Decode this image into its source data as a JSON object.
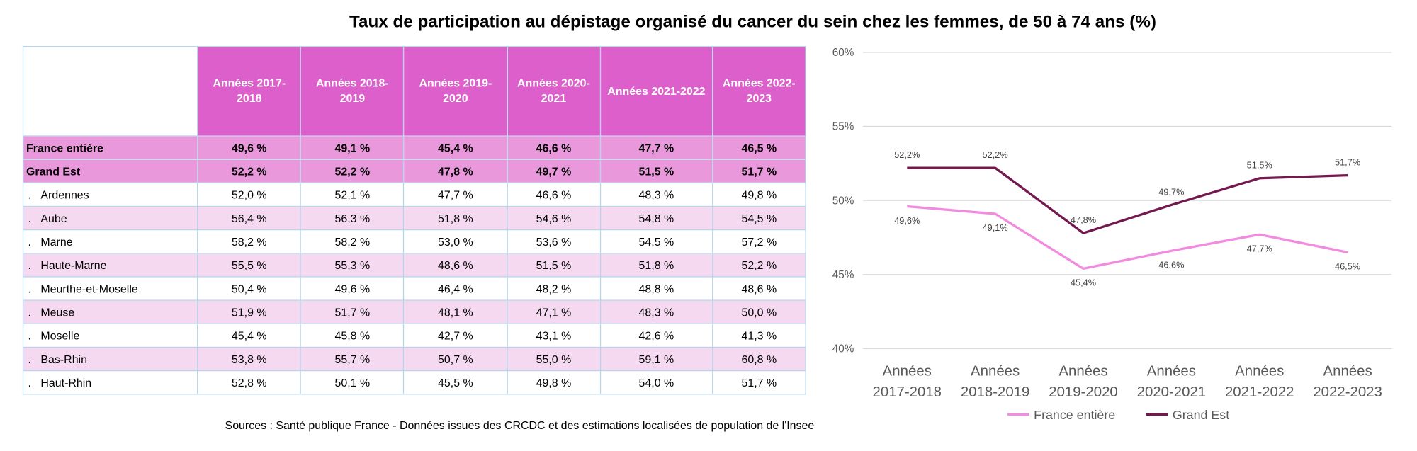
{
  "title": "Taux de participation au dépistage organisé du cancer du sein chez les femmes, de 50 à 74 ans (%)",
  "sources": "Sources : Santé publique France - Données issues des CRCDC et des estimations localisées de population de l'Insee",
  "table": {
    "headers": [
      "Années 2017-2018",
      "Années 2018-2019",
      "Années 2019-2020",
      "Années 2020-2021",
      "Années 2021-2022",
      "Années 2022-2023"
    ],
    "rows": [
      {
        "label": "France entière",
        "marker": "",
        "values": [
          "49,6 %",
          "49,1 %",
          "45,4 %",
          "46,6 %",
          "47,7 %",
          "46,5 %"
        ]
      },
      {
        "label": "Grand Est",
        "marker": "",
        "values": [
          "52,2 %",
          "52,2 %",
          "47,8 %",
          "49,7 %",
          "51,5 %",
          "51,7 %"
        ]
      },
      {
        "label": "Ardennes",
        "marker": ".",
        "values": [
          "52,0 %",
          "52,1 %",
          "47,7 %",
          "46,6 %",
          "48,3 %",
          "49,8 %"
        ]
      },
      {
        "label": "Aube",
        "marker": ".",
        "values": [
          "56,4 %",
          "56,3 %",
          "51,8 %",
          "54,6 %",
          "54,8 %",
          "54,5 %"
        ]
      },
      {
        "label": "Marne",
        "marker": ".",
        "values": [
          "58,2 %",
          "58,2 %",
          "53,0 %",
          "53,6 %",
          "54,5 %",
          "57,2 %"
        ]
      },
      {
        "label": "Haute-Marne",
        "marker": ".",
        "values": [
          "55,5 %",
          "55,3 %",
          "48,6 %",
          "51,5 %",
          "51,8 %",
          "52,2 %"
        ]
      },
      {
        "label": "Meurthe-et-Moselle",
        "marker": ".",
        "values": [
          "50,4 %",
          "49,6 %",
          "46,4 %",
          "48,2 %",
          "48,8 %",
          "48,6 %"
        ]
      },
      {
        "label": "Meuse",
        "marker": ".",
        "values": [
          "51,9 %",
          "51,7 %",
          "48,1 %",
          "47,1 %",
          "48,3 %",
          "50,0 %"
        ]
      },
      {
        "label": "Moselle",
        "marker": ".",
        "values": [
          "45,4 %",
          "45,8 %",
          "42,7 %",
          "43,1 %",
          "42,6 %",
          "41,3 %"
        ]
      },
      {
        "label": "Bas-Rhin",
        "marker": ".",
        "values": [
          "53,8 %",
          "55,7 %",
          "50,7 %",
          "55,0 %",
          "59,1 %",
          "60,8 %"
        ]
      },
      {
        "label": "Haut-Rhin",
        "marker": ".",
        "values": [
          "52,8 %",
          "50,1 %",
          "45,5 %",
          "49,8 %",
          "54,0 %",
          "51,7 %"
        ]
      }
    ]
  },
  "chart_data": {
    "type": "line",
    "categories": [
      [
        "Années",
        "2017-2018"
      ],
      [
        "Années",
        "2018-2019"
      ],
      [
        "Années",
        "2019-2020"
      ],
      [
        "Années",
        "2020-2021"
      ],
      [
        "Années",
        "2021-2022"
      ],
      [
        "Années",
        "2022-2023"
      ]
    ],
    "series": [
      {
        "name": "France entière",
        "color": "#f08be0",
        "values": [
          49.6,
          49.1,
          45.4,
          46.6,
          47.7,
          46.5
        ],
        "labels": [
          "49,6%",
          "49,1%",
          "45,4%",
          "46,6%",
          "47,7%",
          "46,5%"
        ],
        "label_pos": [
          "below",
          "below",
          "below",
          "below",
          "below",
          "below"
        ]
      },
      {
        "name": "Grand Est",
        "color": "#74194f",
        "values": [
          52.2,
          52.2,
          47.8,
          49.7,
          51.5,
          51.7
        ],
        "labels": [
          "52,2%",
          "52,2%",
          "47,8%",
          "49,7%",
          "51,5%",
          "51,7%"
        ],
        "label_pos": [
          "above",
          "above",
          "above",
          "above",
          "above",
          "above"
        ]
      }
    ],
    "yticks": [
      40,
      45,
      50,
      55,
      60
    ],
    "ytick_labels": [
      "40%",
      "45%",
      "50%",
      "55%",
      "60%"
    ],
    "ylim": [
      40,
      60
    ],
    "grid": true,
    "legend": "bottom"
  }
}
